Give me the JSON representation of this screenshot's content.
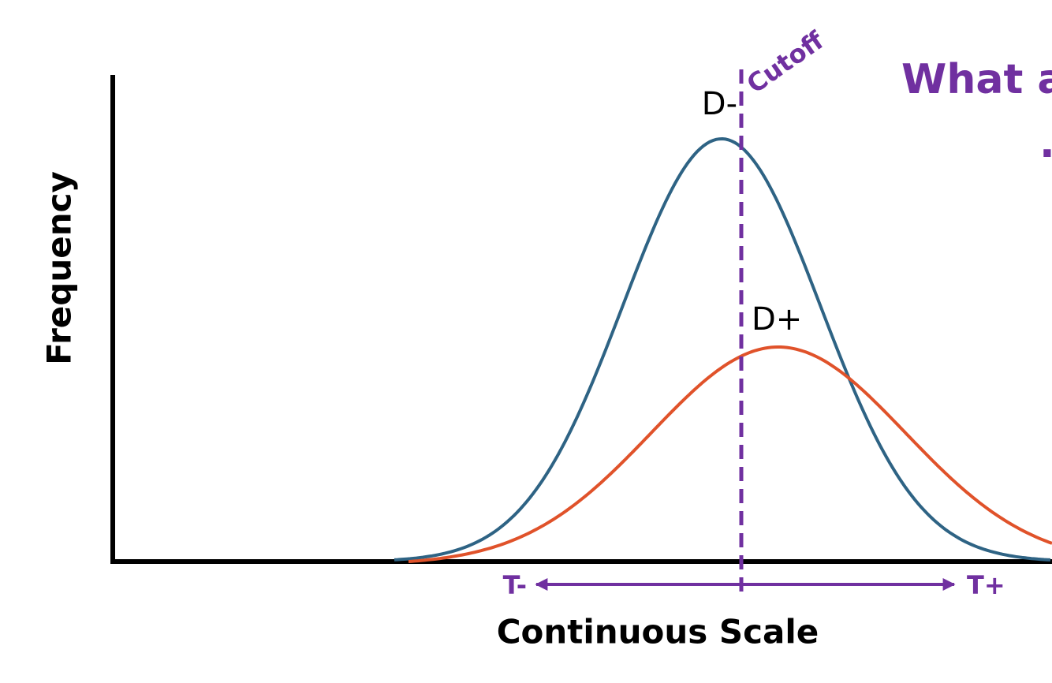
{
  "y_axis_label": "Frequency",
  "x_axis_label": "Continuous Scale",
  "curves": {
    "negative": "D-",
    "positive": "D+"
  },
  "cutoff": {
    "label": "Cutoff",
    "left": "T-",
    "right": "T+"
  },
  "heading": {
    "text": "What a",
    "line2": "."
  }
}
